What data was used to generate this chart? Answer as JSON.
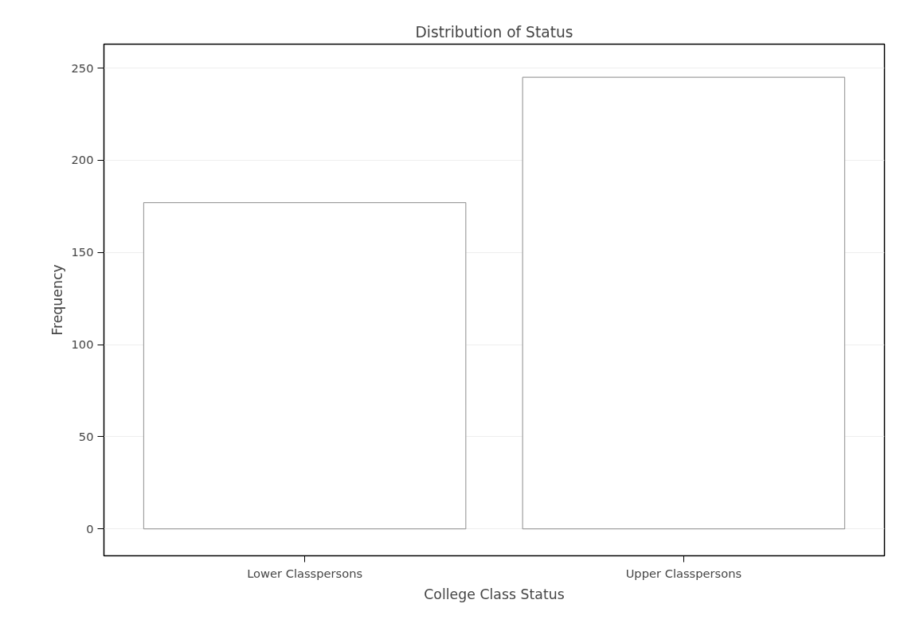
{
  "chart_data": {
    "type": "bar",
    "title": "Distribution of Status",
    "xlabel": "College Class Status",
    "ylabel": "Frequency",
    "categories": [
      "Lower Classpersons",
      "Upper Classpersons"
    ],
    "values": [
      177,
      245
    ],
    "color": "#ffffff",
    "ylim": [
      -14.6,
      263
    ],
    "yticks": [
      0,
      50,
      100,
      150,
      200,
      250
    ],
    "grid": "y"
  }
}
